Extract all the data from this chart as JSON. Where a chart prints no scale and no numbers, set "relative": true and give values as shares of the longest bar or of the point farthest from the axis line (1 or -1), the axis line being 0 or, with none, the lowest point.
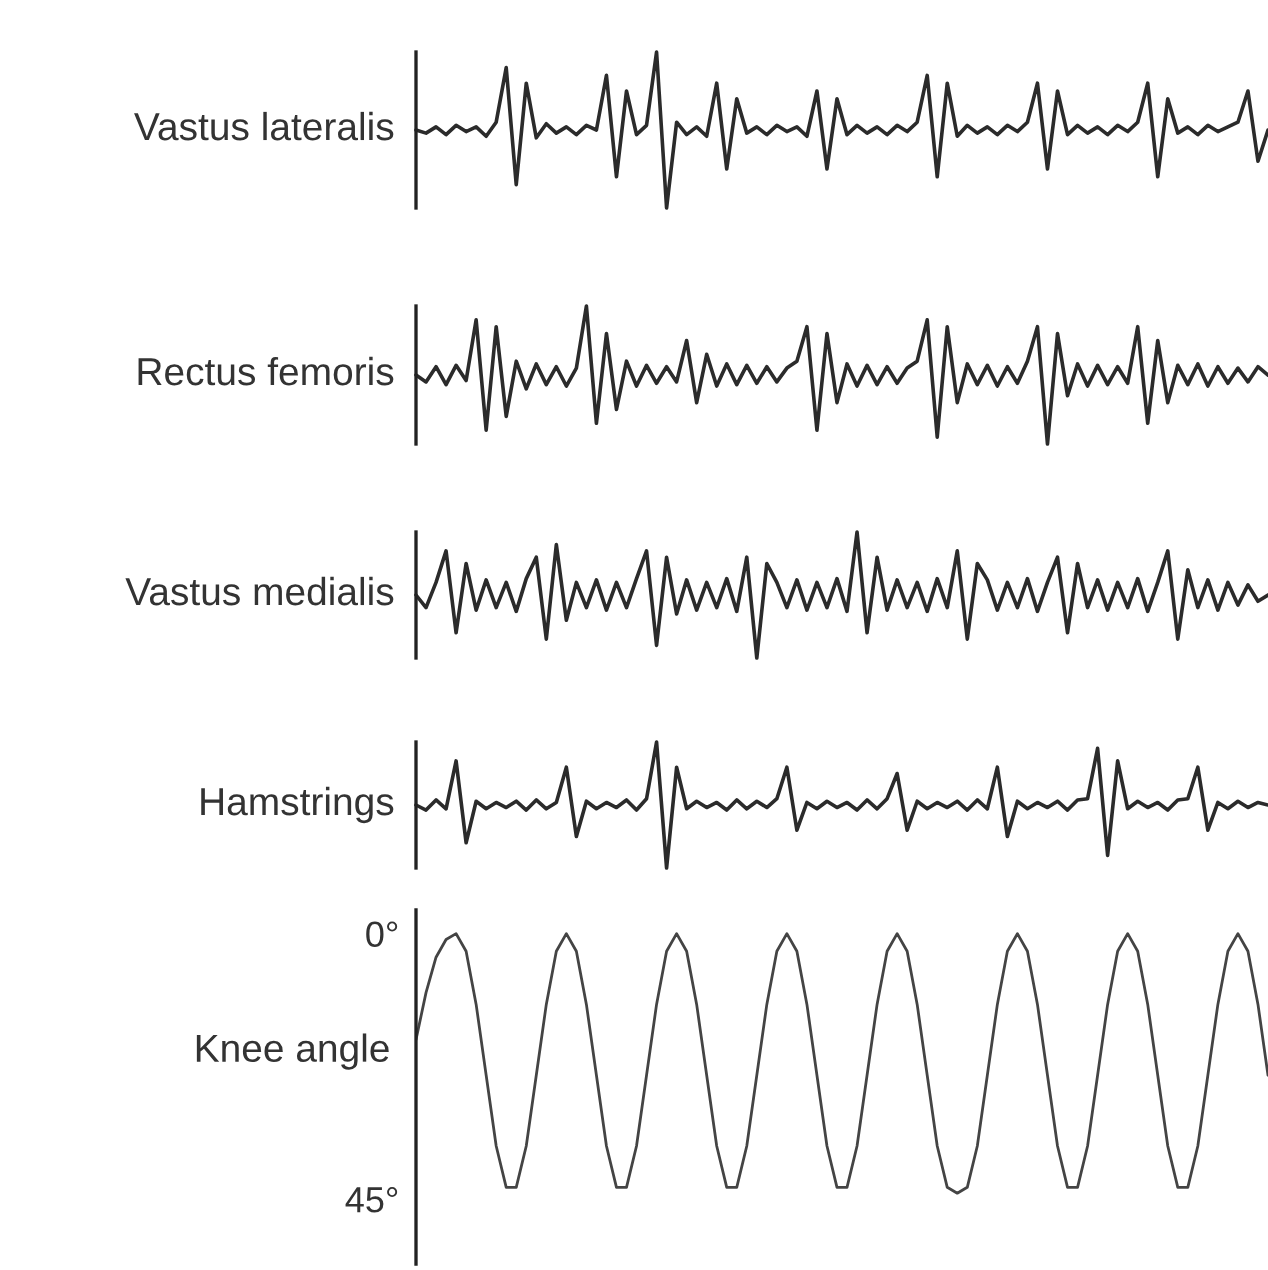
{
  "chart_data": [
    {
      "type": "line",
      "ylabel": "Vastus lateralis",
      "relative": true,
      "tick_labels": false,
      "categories": [
        null,
        null,
        null,
        null,
        null,
        null,
        null,
        null,
        null,
        null,
        null,
        null,
        null,
        null,
        null,
        null,
        null,
        null,
        null,
        null,
        null,
        null,
        null,
        null,
        null,
        null,
        null,
        null,
        null,
        null,
        null,
        null,
        null,
        null,
        null,
        null,
        null,
        null,
        null,
        null,
        null,
        null,
        null,
        null,
        null,
        null,
        null,
        null,
        null,
        null,
        null,
        null,
        null,
        null,
        null,
        null,
        null,
        null,
        null,
        null,
        null,
        null,
        null,
        null,
        null,
        null,
        null,
        null,
        null,
        null,
        null,
        null,
        null,
        null,
        null,
        null,
        null,
        null,
        null,
        null,
        null,
        null,
        null,
        null,
        null,
        null
      ],
      "series": [
        {
          "color": "#2b2b2b",
          "values": [
            0.5,
            0.48,
            0.52,
            0.47,
            0.53,
            0.49,
            0.52,
            0.46,
            0.55,
            0.9,
            0.15,
            0.8,
            0.45,
            0.54,
            0.48,
            0.52,
            0.47,
            0.53,
            0.5,
            0.85,
            0.2,
            0.75,
            0.47,
            0.53,
            1.0,
            0.0,
            0.55,
            0.47,
            0.52,
            0.46,
            0.8,
            0.25,
            0.7,
            0.48,
            0.52,
            0.47,
            0.53,
            0.49,
            0.52,
            0.46,
            0.75,
            0.25,
            0.7,
            0.47,
            0.53,
            0.48,
            0.52,
            0.47,
            0.53,
            0.49,
            0.55,
            0.85,
            0.2,
            0.8,
            0.46,
            0.53,
            0.48,
            0.52,
            0.47,
            0.53,
            0.49,
            0.55,
            0.8,
            0.25,
            0.75,
            0.47,
            0.53,
            0.48,
            0.52,
            0.47,
            0.53,
            0.49,
            0.55,
            0.8,
            0.2,
            0.7,
            0.48,
            0.52,
            0.47,
            0.53,
            0.49,
            0.52,
            0.55,
            0.75,
            0.3,
            0.5
          ]
        }
      ]
    },
    {
      "type": "line",
      "ylabel": "Rectus femoris",
      "relative": true,
      "tick_labels": false,
      "categories": [
        null,
        null,
        null,
        null,
        null,
        null,
        null,
        null,
        null,
        null,
        null,
        null,
        null,
        null,
        null,
        null,
        null,
        null,
        null,
        null,
        null,
        null,
        null,
        null,
        null,
        null,
        null,
        null,
        null,
        null,
        null,
        null,
        null,
        null,
        null,
        null,
        null,
        null,
        null,
        null,
        null,
        null,
        null,
        null,
        null,
        null,
        null,
        null,
        null,
        null,
        null,
        null,
        null,
        null,
        null,
        null,
        null,
        null,
        null,
        null,
        null,
        null,
        null,
        null,
        null,
        null,
        null,
        null,
        null,
        null,
        null,
        null,
        null,
        null,
        null,
        null,
        null,
        null,
        null,
        null,
        null,
        null,
        null,
        null,
        null,
        null
      ],
      "series": [
        {
          "color": "#2b2b2b",
          "values": [
            0.5,
            0.45,
            0.56,
            0.43,
            0.57,
            0.46,
            0.9,
            0.1,
            0.85,
            0.2,
            0.6,
            0.4,
            0.58,
            0.43,
            0.56,
            0.42,
            0.55,
            1.0,
            0.15,
            0.8,
            0.25,
            0.6,
            0.42,
            0.57,
            0.44,
            0.56,
            0.45,
            0.75,
            0.3,
            0.65,
            0.42,
            0.58,
            0.43,
            0.57,
            0.44,
            0.56,
            0.45,
            0.55,
            0.6,
            0.85,
            0.1,
            0.8,
            0.3,
            0.58,
            0.42,
            0.57,
            0.43,
            0.56,
            0.44,
            0.55,
            0.6,
            0.9,
            0.05,
            0.85,
            0.3,
            0.58,
            0.43,
            0.57,
            0.42,
            0.56,
            0.44,
            0.6,
            0.85,
            0.0,
            0.8,
            0.35,
            0.58,
            0.42,
            0.57,
            0.43,
            0.56,
            0.44,
            0.85,
            0.15,
            0.75,
            0.3,
            0.57,
            0.43,
            0.58,
            0.42,
            0.56,
            0.44,
            0.55,
            0.45,
            0.56,
            0.5
          ]
        }
      ]
    },
    {
      "type": "line",
      "ylabel": "Vastus medialis",
      "relative": true,
      "tick_labels": false,
      "categories": [
        null,
        null,
        null,
        null,
        null,
        null,
        null,
        null,
        null,
        null,
        null,
        null,
        null,
        null,
        null,
        null,
        null,
        null,
        null,
        null,
        null,
        null,
        null,
        null,
        null,
        null,
        null,
        null,
        null,
        null,
        null,
        null,
        null,
        null,
        null,
        null,
        null,
        null,
        null,
        null,
        null,
        null,
        null,
        null,
        null,
        null,
        null,
        null,
        null,
        null,
        null,
        null,
        null,
        null,
        null,
        null,
        null,
        null,
        null,
        null,
        null,
        null,
        null,
        null,
        null,
        null,
        null,
        null,
        null,
        null,
        null,
        null,
        null,
        null,
        null,
        null,
        null,
        null,
        null,
        null,
        null,
        null,
        null,
        null,
        null,
        null
      ],
      "series": [
        {
          "color": "#2b2b2b",
          "values": [
            0.5,
            0.4,
            0.6,
            0.85,
            0.2,
            0.75,
            0.38,
            0.62,
            0.4,
            0.6,
            0.37,
            0.63,
            0.8,
            0.15,
            0.9,
            0.3,
            0.6,
            0.4,
            0.62,
            0.38,
            0.6,
            0.4,
            0.63,
            0.85,
            0.1,
            0.8,
            0.35,
            0.62,
            0.38,
            0.6,
            0.4,
            0.63,
            0.37,
            0.8,
            0.0,
            0.75,
            0.6,
            0.4,
            0.62,
            0.38,
            0.6,
            0.4,
            0.63,
            0.37,
            1.0,
            0.2,
            0.8,
            0.38,
            0.62,
            0.4,
            0.6,
            0.37,
            0.63,
            0.4,
            0.85,
            0.15,
            0.75,
            0.62,
            0.38,
            0.6,
            0.4,
            0.63,
            0.37,
            0.6,
            0.8,
            0.2,
            0.75,
            0.4,
            0.62,
            0.38,
            0.6,
            0.4,
            0.63,
            0.37,
            0.6,
            0.85,
            0.15,
            0.7,
            0.4,
            0.62,
            0.38,
            0.6,
            0.42,
            0.58,
            0.45,
            0.5
          ]
        }
      ]
    },
    {
      "type": "line",
      "ylabel": "Hamstrings",
      "relative": true,
      "tick_labels": false,
      "categories": [
        null,
        null,
        null,
        null,
        null,
        null,
        null,
        null,
        null,
        null,
        null,
        null,
        null,
        null,
        null,
        null,
        null,
        null,
        null,
        null,
        null,
        null,
        null,
        null,
        null,
        null,
        null,
        null,
        null,
        null,
        null,
        null,
        null,
        null,
        null,
        null,
        null,
        null,
        null,
        null,
        null,
        null,
        null,
        null,
        null,
        null,
        null,
        null,
        null,
        null,
        null,
        null,
        null,
        null,
        null,
        null,
        null,
        null,
        null,
        null,
        null,
        null,
        null,
        null,
        null,
        null,
        null,
        null,
        null,
        null,
        null,
        null,
        null,
        null,
        null,
        null,
        null,
        null,
        null,
        null,
        null,
        null,
        null,
        null,
        null,
        null
      ],
      "series": [
        {
          "color": "#2b2b2b",
          "values": [
            0.5,
            0.46,
            0.54,
            0.47,
            0.85,
            0.2,
            0.53,
            0.47,
            0.52,
            0.48,
            0.53,
            0.46,
            0.54,
            0.47,
            0.52,
            0.8,
            0.25,
            0.53,
            0.47,
            0.52,
            0.48,
            0.54,
            0.46,
            0.55,
            1.0,
            0.0,
            0.8,
            0.47,
            0.53,
            0.48,
            0.52,
            0.46,
            0.54,
            0.47,
            0.53,
            0.48,
            0.55,
            0.8,
            0.3,
            0.52,
            0.47,
            0.53,
            0.48,
            0.52,
            0.46,
            0.54,
            0.47,
            0.55,
            0.75,
            0.3,
            0.53,
            0.47,
            0.52,
            0.48,
            0.53,
            0.46,
            0.54,
            0.47,
            0.8,
            0.25,
            0.53,
            0.47,
            0.52,
            0.48,
            0.53,
            0.46,
            0.54,
            0.55,
            0.95,
            0.1,
            0.85,
            0.47,
            0.53,
            0.48,
            0.52,
            0.46,
            0.54,
            0.55,
            0.8,
            0.3,
            0.52,
            0.47,
            0.53,
            0.48,
            0.52,
            0.5
          ]
        }
      ]
    },
    {
      "type": "line",
      "ylabel": "Knee angle",
      "tick_labels": "y",
      "ylim": [
        56,
        -4
      ],
      "yticks": [
        {
          "value": 0,
          "label": "0°"
        },
        {
          "value": 45,
          "label": "45°"
        }
      ],
      "categories": [
        null,
        null,
        null,
        null,
        null,
        null,
        null,
        null,
        null,
        null,
        null,
        null,
        null,
        null,
        null,
        null,
        null,
        null,
        null,
        null,
        null,
        null,
        null,
        null,
        null,
        null,
        null,
        null,
        null,
        null,
        null,
        null,
        null,
        null,
        null,
        null,
        null,
        null,
        null,
        null,
        null,
        null,
        null,
        null,
        null,
        null,
        null,
        null,
        null,
        null,
        null,
        null,
        null,
        null,
        null,
        null,
        null,
        null,
        null,
        null,
        null,
        null,
        null,
        null,
        null,
        null,
        null,
        null,
        null,
        null,
        null,
        null,
        null,
        null,
        null,
        null,
        null,
        null,
        null,
        null,
        null,
        null,
        null,
        null,
        null,
        null
      ],
      "series": [
        {
          "color": "#444444",
          "values": [
            18,
            10,
            4,
            1,
            0,
            3,
            12,
            24,
            36,
            43,
            43,
            36,
            24,
            12,
            3,
            0,
            3,
            12,
            24,
            36,
            43,
            43,
            36,
            24,
            12,
            3,
            0,
            3,
            12,
            24,
            36,
            43,
            43,
            36,
            24,
            12,
            3,
            0,
            3,
            12,
            24,
            36,
            43,
            43,
            36,
            24,
            12,
            3,
            0,
            3,
            12,
            24,
            36,
            43,
            44,
            43,
            36,
            24,
            12,
            3,
            0,
            3,
            12,
            24,
            36,
            43,
            43,
            36,
            24,
            12,
            3,
            0,
            3,
            12,
            24,
            36,
            43,
            43,
            36,
            24,
            12,
            3,
            0,
            3,
            12,
            24
          ]
        }
      ]
    }
  ]
}
